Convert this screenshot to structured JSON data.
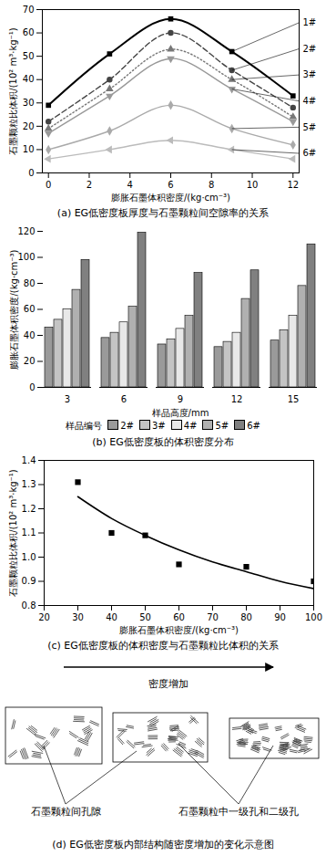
{
  "chart_data": [
    {
      "type": "line",
      "title": "(a) EG低密度板厚度与石墨颗粒间空隙率的关系",
      "x_label": "膨胀石墨体积密度/(kg·cm⁻³)",
      "y_label": "石墨颗粒比体积/(10² m³·kg⁻¹)",
      "x": [
        0,
        3,
        6,
        9,
        12
      ],
      "series": [
        {
          "name": "1#",
          "color": "#000000",
          "line_style": "solid",
          "marker": "square",
          "values": [
            29,
            51,
            66,
            52,
            33
          ]
        },
        {
          "name": "2#",
          "color": "#444444",
          "line_style": "dashed",
          "marker": "circle",
          "values": [
            22,
            40,
            60,
            44,
            28
          ]
        },
        {
          "name": "3#",
          "color": "#777777",
          "line_style": "dotted",
          "marker": "triangle",
          "values": [
            19,
            36,
            53,
            40,
            24
          ]
        },
        {
          "name": "4#",
          "color": "#999999",
          "line_style": "solid",
          "marker": "triangle-down",
          "values": [
            17,
            33,
            49,
            36,
            22
          ]
        },
        {
          "name": "5#",
          "color": "#aaaaaa",
          "line_style": "solid",
          "marker": "diamond",
          "values": [
            10,
            18,
            29,
            19,
            12
          ]
        },
        {
          "name": "6#",
          "color": "#bbbbbb",
          "line_style": "solid",
          "marker": "triangle-left",
          "values": [
            6,
            10,
            14,
            10,
            6
          ]
        }
      ],
      "xlim": [
        -0.3,
        12.3
      ],
      "xticks": [
        0,
        2,
        4,
        6,
        8,
        10,
        12
      ],
      "ylim": [
        0,
        70
      ],
      "yticks": [
        0,
        10,
        20,
        30,
        40,
        50,
        60,
        70
      ]
    },
    {
      "type": "bar",
      "title": "(b) EG低密度板的体积密度分布",
      "x_label": "样品高度/mm",
      "y_label": "膨胀石墨体积密度/(kg·cm⁻³)",
      "series_label": "样品编号",
      "categories": [
        3,
        6,
        9,
        12,
        15
      ],
      "series": [
        {
          "name": "2#",
          "color": "#9a9a9a",
          "values": [
            46,
            38,
            33,
            31,
            36
          ]
        },
        {
          "name": "3#",
          "color": "#c4c4c4",
          "values": [
            52,
            42,
            37,
            35,
            44
          ]
        },
        {
          "name": "4#",
          "color": "#e8e8e8",
          "values": [
            60,
            50,
            45,
            42,
            55
          ]
        },
        {
          "name": "5#",
          "color": "#b0b0b0",
          "values": [
            75,
            62,
            55,
            68,
            78
          ]
        },
        {
          "name": "6#",
          "color": "#808080",
          "values": [
            98,
            119,
            88,
            90,
            110
          ]
        }
      ],
      "ylim": [
        0,
        120
      ],
      "yticks": [
        0,
        20,
        40,
        60,
        80,
        100,
        120
      ]
    },
    {
      "type": "scatter",
      "title": "(c) EG低密度板的体积密度与石墨颗粒比体积的关系",
      "x_label": "膨胀石墨体积密度/(kg·cm⁻³)",
      "y_label": "石墨颗粒比体积/(10² m³·kg⁻¹)",
      "series": [
        {
          "type": "scatter",
          "marker": "square",
          "color": "#000000",
          "x": [
            30,
            40,
            50,
            60,
            80,
            100
          ],
          "values": [
            1.31,
            1.1,
            1.09,
            0.97,
            0.96,
            0.9
          ]
        },
        {
          "type": "line",
          "line_style": "solid",
          "color": "#000000",
          "x": [
            30,
            40,
            50,
            60,
            70,
            80,
            90,
            100
          ],
          "values": [
            1.25,
            1.16,
            1.09,
            1.03,
            0.98,
            0.94,
            0.9,
            0.87
          ]
        }
      ],
      "xlim": [
        20,
        100
      ],
      "xticks": [
        20,
        30,
        40,
        50,
        60,
        70,
        80,
        90,
        100
      ],
      "ylim": [
        0.8,
        1.4
      ],
      "yticks": [
        0.8,
        0.9,
        {
          "value": 1,
          "label": "1.0"
        },
        1.1,
        1.2,
        1.3,
        1.4
      ]
    }
  ],
  "diagram": {
    "title": "(d) EG低密度板内部结构随密度增加的变化示意图",
    "arrow_label": "密度增加",
    "labels": [
      "石墨颗粒间孔隙",
      "石墨颗粒中一级孔和二级孔"
    ]
  }
}
